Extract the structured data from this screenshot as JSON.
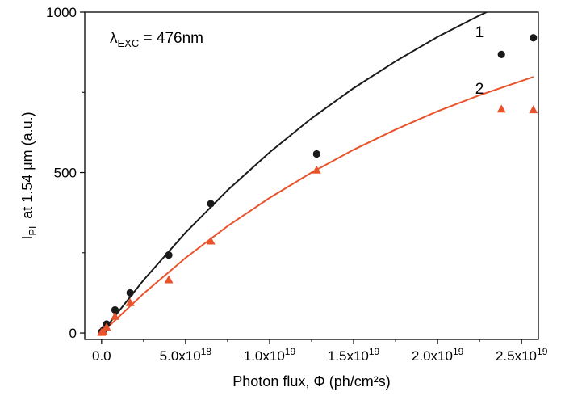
{
  "chart_data": {
    "type": "scatter",
    "title": "",
    "xlabel": "Photon flux, Φ (ph/cm²s)",
    "ylabel": "I_PL at 1.54 μm (a.u.)",
    "xlim": [
      -1e+18,
      2.6e+19
    ],
    "ylim": [
      -20,
      1000
    ],
    "x_ticks": [
      {
        "value": 0,
        "mantissa": "0.0",
        "exponent": ""
      },
      {
        "value": 5e+18,
        "mantissa": "5.0x10",
        "exponent": "18"
      },
      {
        "value": 1e+19,
        "mantissa": "1.0x10",
        "exponent": "19"
      },
      {
        "value": 1.5e+19,
        "mantissa": "1.5x10",
        "exponent": "19"
      },
      {
        "value": 2e+19,
        "mantissa": "2.0x10",
        "exponent": "19"
      },
      {
        "value": 2.5e+19,
        "mantissa": "2.5x10",
        "exponent": "19"
      }
    ],
    "y_ticks": [
      {
        "value": 0,
        "label": "0"
      },
      {
        "value": 500,
        "label": "500"
      },
      {
        "value": 1000,
        "label": "1000"
      }
    ],
    "annotation": {
      "lambda": "λ",
      "sub": "EXC",
      "value": " = 476nm"
    },
    "series": [
      {
        "name": "1",
        "marker": "circle",
        "color": "#1a1a1a",
        "points": [
          [
            0.0,
            3
          ],
          [
            1e+17,
            8
          ],
          [
            3e+17,
            28
          ],
          [
            8e+17,
            72
          ],
          [
            1.7e+18,
            125
          ],
          [
            4e+18,
            243
          ],
          [
            6.5e+18,
            403
          ],
          [
            1.28e+19,
            558
          ],
          [
            2.38e+19,
            868
          ],
          [
            2.57e+19,
            920
          ]
        ],
        "fit": [
          [
            0.0,
            0
          ],
          [
            2.5e+18,
            165
          ],
          [
            5e+18,
            313
          ],
          [
            7.5e+18,
            445
          ],
          [
            1e+19,
            563
          ],
          [
            1.25e+19,
            669
          ],
          [
            1.5e+19,
            763
          ],
          [
            1.75e+19,
            847
          ],
          [
            2e+19,
            923
          ],
          [
            2.25e+19,
            990
          ],
          [
            2.57e+19,
            1067
          ]
        ]
      },
      {
        "name": "2",
        "marker": "triangle",
        "color": "#e8532b",
        "points": [
          [
            0.0,
            2
          ],
          [
            1e+17,
            5
          ],
          [
            3e+17,
            18
          ],
          [
            8e+17,
            52
          ],
          [
            1.7e+18,
            95
          ],
          [
            4e+18,
            166
          ],
          [
            6.5e+18,
            287
          ],
          [
            1.28e+19,
            508
          ],
          [
            2.38e+19,
            698
          ],
          [
            2.57e+19,
            696
          ]
        ],
        "fit": [
          [
            0.0,
            0
          ],
          [
            2.5e+18,
            123
          ],
          [
            5e+18,
            234
          ],
          [
            7.5e+18,
            333
          ],
          [
            1e+19,
            421
          ],
          [
            1.25e+19,
            500
          ],
          [
            1.5e+19,
            571
          ],
          [
            1.75e+19,
            634
          ],
          [
            2e+19,
            691
          ],
          [
            2.25e+19,
            741
          ],
          [
            2.57e+19,
            798
          ]
        ]
      }
    ]
  }
}
